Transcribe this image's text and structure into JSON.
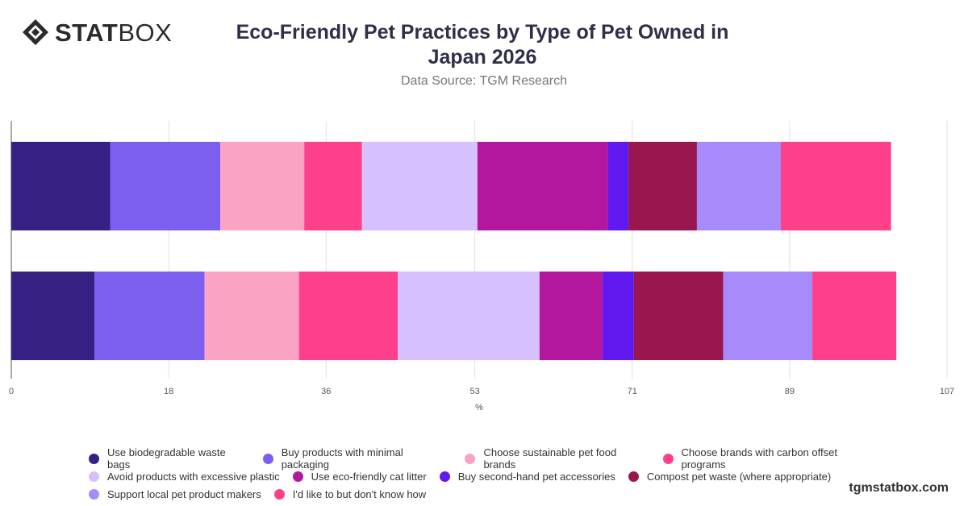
{
  "brand": {
    "logo_bold": "STAT",
    "logo_light": "BOX",
    "footer": "tgmstatbox.com"
  },
  "header": {
    "title_line1": "Eco-Friendly Pet Practices by Type of Pet Owned in",
    "title_line2": "Japan 2026",
    "subtitle": "Data Source: TGM Research"
  },
  "chart_data": {
    "type": "bar",
    "orientation": "horizontal",
    "stacked": true,
    "title": "Eco-Friendly Pet Practices by Type of Pet Owned in Japan 2026",
    "subtitle": "Data Source: TGM Research",
    "xlabel": "%",
    "ylabel": "",
    "xlim": [
      0,
      107
    ],
    "xticks": [
      0,
      18,
      36,
      53,
      71,
      89,
      107
    ],
    "categories": [
      "",
      ""
    ],
    "grid": true,
    "legend_position": "bottom",
    "series": [
      {
        "name": "Use biodegradable waste bags",
        "color": "#372083",
        "values": [
          11.3,
          9.5
        ]
      },
      {
        "name": "Buy products with minimal packaging",
        "color": "#7d5fef",
        "values": [
          12.6,
          12.6
        ]
      },
      {
        "name": "Choose sustainable pet food brands",
        "color": "#fba3c3",
        "values": [
          9.6,
          10.8
        ]
      },
      {
        "name": "Choose brands with carbon offset programs",
        "color": "#fe3f8a",
        "values": [
          6.6,
          11.3
        ]
      },
      {
        "name": "Avoid products with excessive plastic",
        "color": "#d6c0fd",
        "values": [
          13.2,
          16.2
        ]
      },
      {
        "name": "Use eco-friendly cat litter",
        "color": "#b3179e",
        "values": [
          14.9,
          7.2
        ]
      },
      {
        "name": "Buy second-hand pet accessories",
        "color": "#6219ef",
        "values": [
          2.4,
          3.6
        ]
      },
      {
        "name": "Compost pet waste (where appropriate)",
        "color": "#99164e",
        "values": [
          7.8,
          10.2
        ]
      },
      {
        "name": "Support local pet product makers",
        "color": "#a78bfb",
        "values": [
          9.6,
          10.2
        ]
      },
      {
        "name": "I'd like to but don't know how",
        "color": "#fe3f8a",
        "values": [
          12.6,
          9.6
        ]
      }
    ]
  }
}
